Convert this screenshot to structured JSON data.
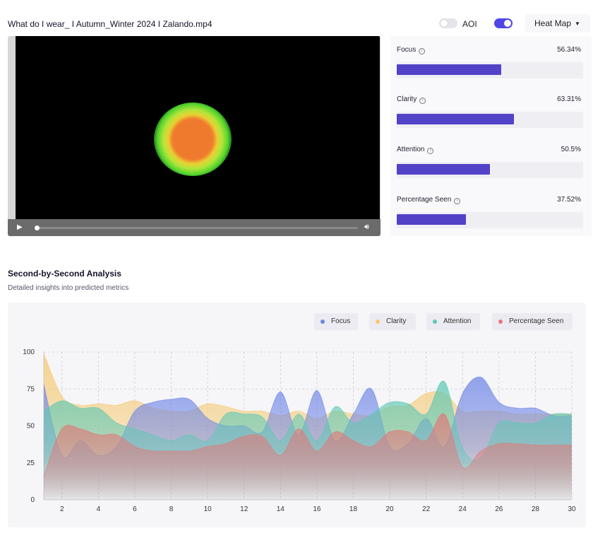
{
  "header": {
    "file_title": "What do I wear_ I Autumn_Winter 2024 I Zalando.mp4",
    "aoi_label": "AOI",
    "aoi_enabled": false,
    "heatmap_enabled": true,
    "view_mode": "Heat Map"
  },
  "player": {
    "play_icon": "play-icon",
    "volume_icon": "volume-icon"
  },
  "metrics": [
    {
      "label": "Focus",
      "value": "56.34%",
      "fraction": 0.5634
    },
    {
      "label": "Clarity",
      "value": "63.31%",
      "fraction": 0.6331
    },
    {
      "label": "Attention",
      "value": "50.5%",
      "fraction": 0.505
    },
    {
      "label": "Percentage Seen",
      "value": "37.52%",
      "fraction": 0.3752
    }
  ],
  "colors": {
    "accent": "#5142c8",
    "focus": "#6f86e6",
    "clarity": "#f5c86e",
    "attention": "#5ec8b4",
    "percentage_seen": "#e07a7a"
  },
  "analysis": {
    "title": "Second-by-Second Analysis",
    "subtitle": "Detailed insights into predicted metrics"
  },
  "chart_data": {
    "type": "area",
    "title": "",
    "xlabel": "",
    "ylabel": "",
    "grid": true,
    "legend_position": "top-right",
    "xlim": [
      1,
      30
    ],
    "ylim": [
      0,
      100
    ],
    "x_ticks": [
      2,
      4,
      6,
      8,
      10,
      12,
      14,
      16,
      18,
      20,
      22,
      24,
      26,
      28,
      30
    ],
    "y_ticks": [
      0,
      25,
      50,
      75,
      100
    ],
    "x": [
      1,
      2,
      3,
      4,
      5,
      6,
      7,
      8,
      9,
      10,
      11,
      12,
      13,
      14,
      15,
      16,
      17,
      18,
      19,
      20,
      21,
      22,
      23,
      24,
      25,
      26,
      27,
      28,
      29,
      30
    ],
    "series": [
      {
        "name": "Focus",
        "color": "#6f86e6",
        "values": [
          78,
          30,
          40,
          30,
          36,
          60,
          66,
          68,
          68,
          55,
          50,
          50,
          46,
          73,
          44,
          74,
          40,
          58,
          75,
          36,
          38,
          55,
          36,
          72,
          83,
          66,
          62,
          62,
          57,
          57
        ]
      },
      {
        "name": "Clarity",
        "color": "#f5c86e",
        "values": [
          99,
          70,
          64,
          65,
          64,
          67,
          62,
          60,
          60,
          65,
          63,
          60,
          60,
          57,
          60,
          55,
          60,
          58,
          57,
          63,
          64,
          72,
          72,
          60,
          60,
          60,
          58,
          58,
          58,
          58
        ]
      },
      {
        "name": "Attention",
        "color": "#5ec8b4",
        "values": [
          60,
          67,
          62,
          62,
          52,
          48,
          44,
          40,
          44,
          40,
          58,
          58,
          56,
          40,
          58,
          40,
          63,
          52,
          58,
          66,
          65,
          58,
          80,
          35,
          28,
          52,
          52,
          52,
          58,
          58
        ]
      },
      {
        "name": "Percentage Seen",
        "color": "#e07a7a",
        "values": [
          16,
          48,
          48,
          44,
          44,
          36,
          33,
          33,
          33,
          36,
          38,
          43,
          43,
          30,
          48,
          33,
          46,
          40,
          36,
          46,
          46,
          40,
          58,
          22,
          33,
          38,
          38,
          37,
          37,
          37
        ]
      }
    ]
  }
}
